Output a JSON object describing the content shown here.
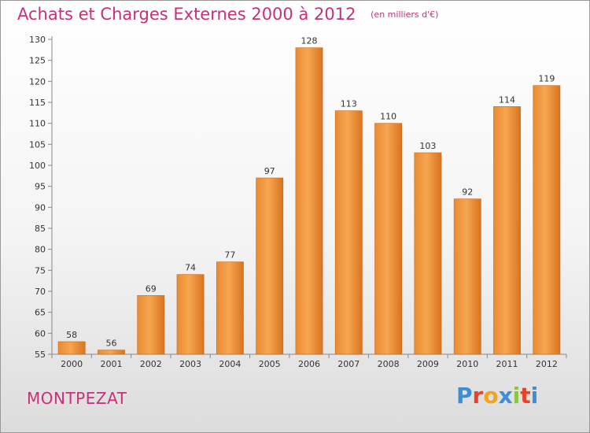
{
  "header": {
    "title": "Achats et Charges Externes 2000 à 2012",
    "unit": "(en milliers d'€)"
  },
  "footer": {
    "place": "MONTPEZAT",
    "logo": "Proxiti"
  },
  "colors": {
    "title": "#c8307a",
    "bar_light": "#f7a651",
    "bar_dark": "#d9741f"
  },
  "chart_data": {
    "type": "bar",
    "categories": [
      "2000",
      "2001",
      "2002",
      "2003",
      "2004",
      "2005",
      "2006",
      "2007",
      "2008",
      "2009",
      "2010",
      "2011",
      "2012"
    ],
    "values": [
      58,
      56,
      69,
      74,
      77,
      97,
      128,
      113,
      110,
      103,
      92,
      114,
      119
    ],
    "data_labels": [
      "58",
      "56",
      "69",
      "74",
      "77",
      "97",
      "128",
      "113",
      "110",
      "103",
      "92",
      "114",
      "119"
    ],
    "yticks": [
      55,
      60,
      65,
      70,
      75,
      80,
      85,
      90,
      95,
      100,
      105,
      110,
      115,
      120,
      125,
      130
    ],
    "ylim": [
      55,
      130
    ],
    "grid": false
  }
}
